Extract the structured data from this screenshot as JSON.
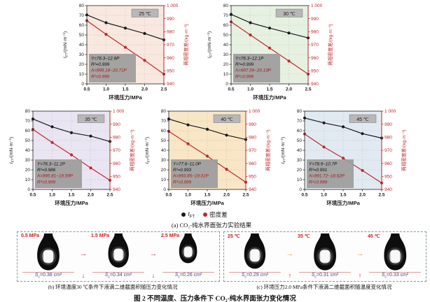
{
  "page": {
    "background": "#ffffff"
  },
  "legend": {
    "ift_symbol": "I",
    "ift_sub": "FT",
    "density_label": "密度差",
    "ift_color": "#1a1a1a",
    "density_color": "#c0282d"
  },
  "captions": {
    "a": "(a) CO₂-纯水界面张力实验结果",
    "b": "(b) 环境温度30 ℃条件下液滴二维截面积随压力变化情况",
    "c": "(c) 环境压力2.0 MPa条件下液滴二维截面积随温度变化情况",
    "main": "图 2  不同温度、压力条件下 CO₂-纯水界面张力变化情况"
  },
  "chart_data": [
    {
      "type": "line",
      "temperature_label": "25 ℃",
      "bg_color": "#f9e8df",
      "x": [
        0.5,
        1.0,
        1.5,
        2.0,
        2.5
      ],
      "xticks": [
        "0.5",
        "1.0",
        "1.5",
        "2.0",
        "2.5"
      ],
      "xlabel": "环境压力/MPa",
      "ylabel_left": {
        "pre": "I",
        "sub": "FT",
        "post": "/(mN·m⁻¹)"
      },
      "ylabel_right": "两相密度差/(kg·m⁻³)",
      "ylim_left": [
        0,
        80
      ],
      "yticks_left": [
        0,
        10,
        20,
        30,
        40,
        50,
        60,
        70,
        80
      ],
      "ylim_right": [
        940,
        1000
      ],
      "yticks_right": [
        "940",
        "950",
        "960",
        "970",
        "980",
        "990",
        "1 000"
      ],
      "series": [
        {
          "name": "IFT",
          "axis": "left",
          "color": "#1a1a1a",
          "values": [
            70.5,
            62.5,
            57.0,
            51.5,
            45.0
          ]
        },
        {
          "name": "密度差",
          "axis": "right",
          "color": "#c0282d",
          "values": [
            988.5,
            978.0,
            968.0,
            958.0,
            947.5
          ]
        }
      ],
      "fit_lines": [
        {
          "text": "Y=76.3−12.6P",
          "color": "#111111"
        },
        {
          "text": "R²=0.999",
          "color": "#111111"
        },
        {
          "text": "A=999.18−20.71P",
          "color": "#a61b1b"
        },
        {
          "text": "R²=0.990",
          "color": "#a61b1b"
        }
      ]
    },
    {
      "type": "line",
      "temperature_label": "30 ℃",
      "bg_color": "#e7f1e1",
      "x": [
        0.5,
        1.0,
        1.5,
        2.0,
        2.5
      ],
      "xticks": [
        "0.5",
        "1.0",
        "1.5",
        "2.0",
        "2.5"
      ],
      "xlabel": "环境压力/MPa",
      "ylabel_left": {
        "pre": "I",
        "sub": "FT",
        "post": "/(mN·m⁻¹)"
      },
      "ylabel_right": "两相密度差/(kg·m⁻³)",
      "ylim_left": [
        0,
        80
      ],
      "yticks_left": [
        0,
        10,
        20,
        30,
        40,
        50,
        60,
        70,
        80
      ],
      "ylim_right": [
        940,
        1000
      ],
      "yticks_right": [
        "940",
        "950",
        "960",
        "970",
        "980",
        "990",
        "1 000"
      ],
      "series": [
        {
          "name": "IFT",
          "axis": "left",
          "color": "#1a1a1a",
          "values": [
            71.0,
            62.5,
            57.0,
            52.0,
            47.0
          ]
        },
        {
          "name": "密度差",
          "axis": "right",
          "color": "#c0282d",
          "values": [
            987.5,
            977.5,
            967.5,
            957.5,
            947.5
          ]
        }
      ],
      "fit_lines": [
        {
          "text": "Y=76.3−12.1P",
          "color": "#111111"
        },
        {
          "text": "R²=0.999",
          "color": "#111111"
        },
        {
          "text": "A=997.59−20.13P",
          "color": "#a61b1b"
        },
        {
          "text": "R²=0.999",
          "color": "#a61b1b"
        }
      ]
    },
    {
      "type": "line",
      "temperature_label": "35 ℃",
      "bg_color": "#eae5f2",
      "x": [
        0.5,
        1.0,
        1.5,
        2.0,
        2.5
      ],
      "xticks": [
        "0.5",
        "1.0",
        "1.5",
        "2.0",
        "2.5"
      ],
      "xlabel": "环境压力/MPa",
      "ylabel_left": {
        "pre": "I",
        "sub": "FT",
        "post": "/(mN·m⁻¹)"
      },
      "ylabel_right": "两相密度差/(kg·m⁻³)",
      "ylim_left": [
        0,
        80
      ],
      "yticks_left": [
        0,
        10,
        20,
        30,
        40,
        50,
        60,
        70,
        80
      ],
      "ylim_right": [
        940,
        1000
      ],
      "yticks_right": [
        "940",
        "950",
        "960",
        "970",
        "980",
        "990",
        "1 000"
      ],
      "series": [
        {
          "name": "IFT",
          "axis": "left",
          "color": "#1a1a1a",
          "values": [
            72.0,
            64.0,
            58.0,
            54.5,
            49.0
          ]
        },
        {
          "name": "密度差",
          "axis": "right",
          "color": "#c0282d",
          "values": [
            986.0,
            976.0,
            966.5,
            956.5,
            947.0
          ]
        }
      ],
      "fit_lines": [
        {
          "text": "Y=76.3−11.1P",
          "color": "#111111"
        },
        {
          "text": "R²=0.986",
          "color": "#111111"
        },
        {
          "text": "A=995.81−19.59P",
          "color": "#a61b1b"
        },
        {
          "text": "R²=0.999",
          "color": "#a61b1b"
        }
      ]
    },
    {
      "type": "line",
      "temperature_label": "40 ℃",
      "bg_color": "#f8e6c6",
      "x": [
        0.5,
        1.0,
        1.5,
        2.0,
        2.5
      ],
      "xticks": [
        "0.5",
        "1.0",
        "1.5",
        "2.0",
        "2.5"
      ],
      "xlabel": "环境压力/MPa",
      "ylabel_left": {
        "pre": "I",
        "sub": "FT",
        "post": "/(mN·m⁻¹)"
      },
      "ylabel_right": "两相密度差/(kg·m⁻³)",
      "ylim_left": [
        0,
        80
      ],
      "yticks_left": [
        0,
        10,
        20,
        30,
        40,
        50,
        60,
        70,
        80
      ],
      "ylim_right": [
        940,
        1000
      ],
      "yticks_right": [
        "940",
        "950",
        "960",
        "970",
        "980",
        "990",
        "1 000"
      ],
      "series": [
        {
          "name": "IFT",
          "axis": "left",
          "color": "#1a1a1a",
          "values": [
            72.0,
            66.0,
            61.5,
            55.5,
            51.0
          ]
        },
        {
          "name": "密度差",
          "axis": "right",
          "color": "#c0282d",
          "values": [
            984.5,
            975.0,
            965.5,
            955.5,
            945.5
          ]
        }
      ],
      "fit_lines": [
        {
          "text": "Y=77.6−11.0P",
          "color": "#111111"
        },
        {
          "text": "R²=0.993",
          "color": "#111111"
        },
        {
          "text": "A=993.85−19.01P",
          "color": "#a61b1b"
        },
        {
          "text": "R²=0.999",
          "color": "#a61b1b"
        }
      ]
    },
    {
      "type": "line",
      "temperature_label": "45 ℃",
      "bg_color": "#e2eaf1",
      "x": [
        0.5,
        1.0,
        1.5,
        2.0,
        2.5
      ],
      "xticks": [
        "0.5",
        "1.0",
        "1.5",
        "2.0",
        "2.5"
      ],
      "xlabel": "环境压力/MPa",
      "ylabel_left": {
        "pre": "I",
        "sub": "FT",
        "post": "/(mN·m⁻¹)"
      },
      "ylabel_right": "两相密度差/(kg·m⁻³)",
      "ylim_left": [
        0,
        80
      ],
      "yticks_left": [
        0,
        10,
        20,
        30,
        40,
        50,
        60,
        70,
        80
      ],
      "ylim_right": [
        940,
        1000
      ],
      "yticks_right": [
        "940",
        "950",
        "960",
        "970",
        "980",
        "990",
        "1 000"
      ],
      "series": [
        {
          "name": "IFT",
          "axis": "left",
          "color": "#1a1a1a",
          "values": [
            73.0,
            68.0,
            64.0,
            57.0,
            52.5
          ]
        },
        {
          "name": "密度差",
          "axis": "right",
          "color": "#c0282d",
          "values": [
            982.5,
            972.5,
            964.0,
            954.5,
            945.0
          ]
        }
      ],
      "fit_lines": [
        {
          "text": "Y=78.9−10.7P",
          "color": "#111111"
        },
        {
          "text": "R²=0.991",
          "color": "#111111"
        },
        {
          "text": "A=991.72−18.62P",
          "color": "#a61b1b"
        },
        {
          "text": "R²=0.999",
          "color": "#a61b1b"
        }
      ]
    }
  ],
  "photo_panels": [
    {
      "id": "b",
      "harrow": "→",
      "harrow_color": "#c0504d",
      "trend_arrow": "↓",
      "trend_color": "#cc2222",
      "items": [
        {
          "condition": "0.5 MPa",
          "area_sym": "S",
          "area_sub": "c",
          "area_val": "=0.38 cm²",
          "scale": 1.0
        },
        {
          "condition": "1.5 MPa",
          "area_sym": "S",
          "area_sub": "c",
          "area_val": "=0.34 cm²",
          "scale": 0.92
        },
        {
          "condition": "2.5 MPa",
          "area_sym": "S",
          "area_sub": "c",
          "area_val": "=0.26 cm²",
          "scale": 0.8
        }
      ]
    },
    {
      "id": "c",
      "harrow": "→",
      "harrow_color": "#e2a23c",
      "trend_arrow": "↑",
      "trend_color": "#cc2222",
      "items": [
        {
          "condition": "25 ℃",
          "area_sym": "S",
          "area_sub": "c",
          "area_val": "=0.29 cm²",
          "scale": 0.95
        },
        {
          "condition": "35 ℃",
          "area_sym": "S",
          "area_sub": "c",
          "area_val": "=0.31 cm²",
          "scale": 1.05
        },
        {
          "condition": "45 ℃",
          "area_sym": "S",
          "area_sub": "c",
          "area_val": "=0.33 cm²",
          "scale": 1.15
        }
      ]
    }
  ]
}
